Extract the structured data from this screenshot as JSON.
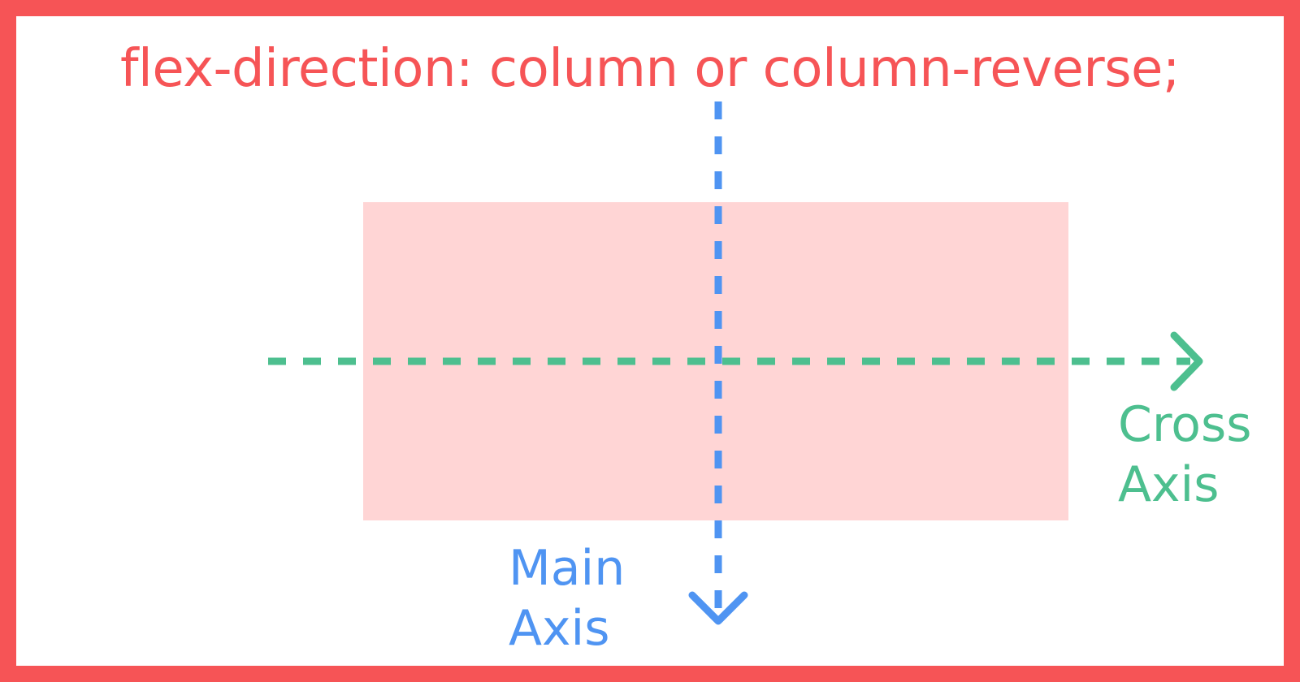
{
  "title": "flex-direction: column or column-reverse;",
  "main_axis": {
    "label_line1": "Main",
    "label_line2": "Axis",
    "color": "#4f94f2"
  },
  "cross_axis": {
    "label_line1": "Cross",
    "label_line2": "Axis",
    "color": "#4dbf8f"
  },
  "colors": {
    "frame": "#f65456",
    "box": "#ffd5d5",
    "background": "#ffffff"
  }
}
